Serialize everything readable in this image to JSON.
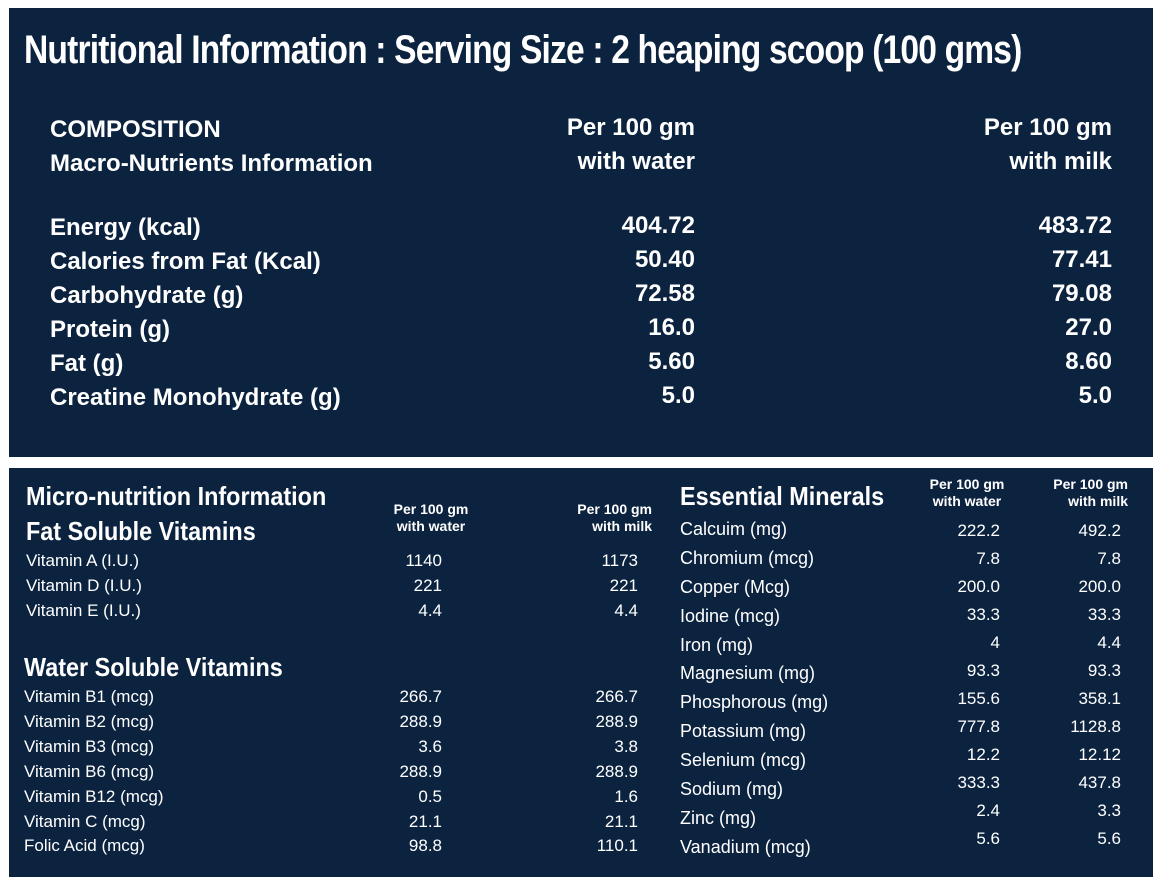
{
  "title": "Nutritional Information : Serving Size : 2 heaping scoop (100 gms)",
  "macro": {
    "heading1": "COMPOSITION",
    "heading2": "Macro-Nutrients Information",
    "col_water_1": "Per 100 gm",
    "col_water_2": "with water",
    "col_milk_1": "Per 100 gm",
    "col_milk_2": "with milk",
    "rows": [
      {
        "label": "Energy (kcal)",
        "water": "404.72",
        "milk": "483.72"
      },
      {
        "label": "Calories from Fat (Kcal)",
        "water": "50.40",
        "milk": "77.41"
      },
      {
        "label": "Carbohydrate  (g)",
        "water": "72.58",
        "milk": "79.08"
      },
      {
        "label": "Protein (g)",
        "water": "16.0",
        "milk": "27.0"
      },
      {
        "label": "Fat (g)",
        "water": "5.60",
        "milk": "8.60"
      },
      {
        "label": "Creatine Monohydrate (g)",
        "water": "5.0",
        "milk": "5.0"
      }
    ]
  },
  "micro": {
    "heading": "Micro-nutrition Information",
    "fat_heading": "Fat Soluble Vitamins",
    "col_water_1": "Per 100 gm",
    "col_water_2": "with water",
    "col_milk_1": "Per 100 gm",
    "col_milk_2": "with milk",
    "fat_rows": [
      {
        "label": "Vitamin A (I.U.)",
        "water": "1140",
        "milk": "1173"
      },
      {
        "label": "Vitamin D (I.U.)",
        "water": "221",
        "milk": "221"
      },
      {
        "label": "Vitamin E (I.U.)",
        "water": "4.4",
        "milk": "4.4"
      }
    ],
    "water_heading": "Water Soluble Vitamins",
    "water_rows": [
      {
        "label": "Vitamin B1 (mcg)",
        "water": "266.7",
        "milk": "266.7"
      },
      {
        "label": "Vitamin B2 (mcg)",
        "water": "288.9",
        "milk": "288.9"
      },
      {
        "label": "Vitamin B3 (mcg)",
        "water": "3.6",
        "milk": "3.8"
      },
      {
        "label": "Vitamin B6 (mcg)",
        "water": "288.9",
        "milk": "288.9"
      },
      {
        "label": "Vitamin B12 (mcg)",
        "water": "0.5",
        "milk": "1.6"
      },
      {
        "label": "Vitamin C (mcg)",
        "water": "21.1",
        "milk": "21.1"
      },
      {
        "label": "Folic Acid (mcg)",
        "water": "98.8",
        "milk": "110.1"
      }
    ]
  },
  "minerals": {
    "heading": "Essential Minerals",
    "col_water_1": "Per 100 gm",
    "col_water_2": "with water",
    "col_milk_1": "Per 100 gm",
    "col_milk_2": "with milk",
    "rows": [
      {
        "label": "Calcuim (mg)",
        "water": "222.2",
        "milk": "492.2"
      },
      {
        "label": "Chromium (mcg)",
        "water": "7.8",
        "milk": "7.8"
      },
      {
        "label": "Copper (Mcg)",
        "water": "200.0",
        "milk": "200.0"
      },
      {
        "label": "Iodine (mcg)",
        "water": "33.3",
        "milk": "33.3"
      },
      {
        "label": "Iron (mg)",
        "water": "4",
        "milk": "4.4"
      },
      {
        "label": "Magnesium (mg)",
        "water": "93.3",
        "milk": "93.3"
      },
      {
        "label": "Phosphorous (mg)",
        "water": "155.6",
        "milk": "358.1"
      },
      {
        "label": "Potassium (mg)",
        "water": "777.8",
        "milk": "1128.8"
      },
      {
        "label": "Selenium (mcg)",
        "water": "12.2",
        "milk": "12.12"
      },
      {
        "label": "Sodium (mg)",
        "water": "333.3",
        "milk": "437.8"
      },
      {
        "label": "Zinc (mg)",
        "water": "2.4",
        "milk": "3.3"
      },
      {
        "label": "Vanadium (mcg)",
        "water": "5.6",
        "milk": "5.6"
      }
    ]
  }
}
